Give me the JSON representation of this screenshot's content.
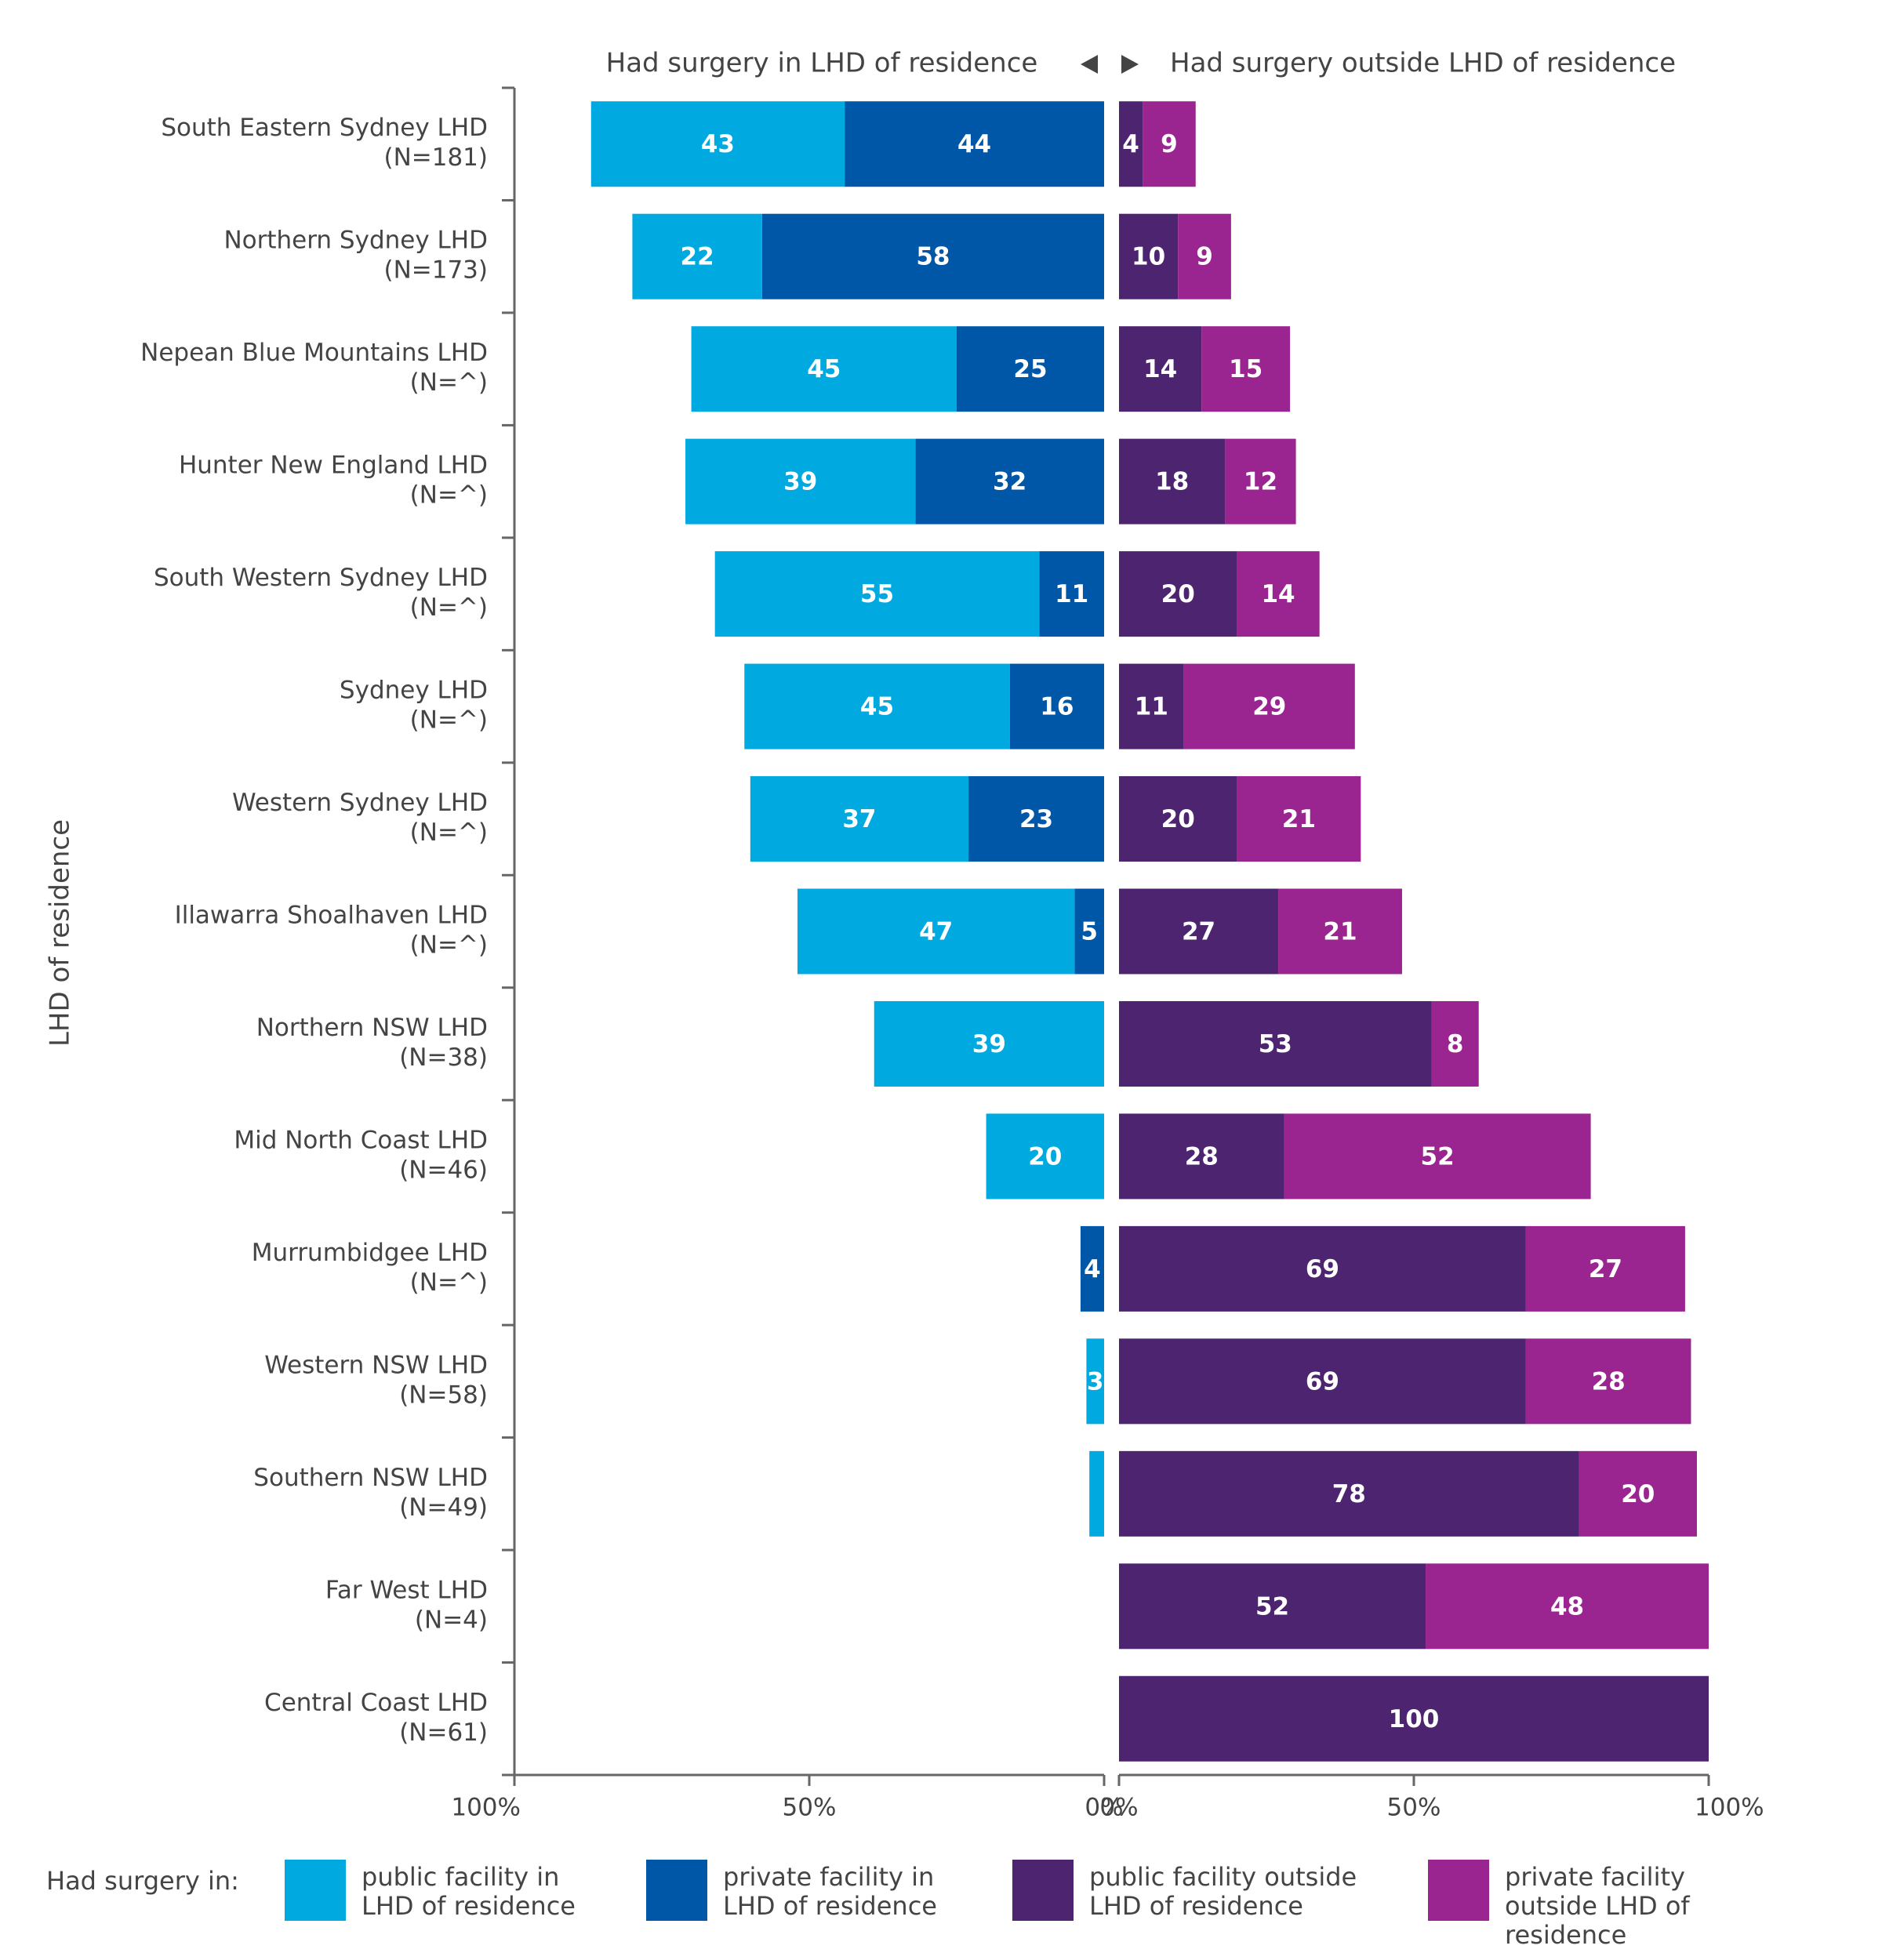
{
  "chart_data": {
    "type": "diverging-bar",
    "header_left": "Had surgery in LHD of residence",
    "header_right": "Had surgery outside LHD of residence",
    "y_label": "LHD of residence",
    "legend_title": "Had surgery in:",
    "categories": [
      [
        "South Eastern Sydney LHD",
        "(N=181)"
      ],
      [
        "Northern Sydney LHD",
        "(N=173)"
      ],
      [
        "Nepean Blue Mountains LHD",
        "(N=^)"
      ],
      [
        "Hunter New England LHD",
        "(N=^)"
      ],
      [
        "South Western Sydney LHD",
        "(N=^)"
      ],
      [
        "Sydney LHD",
        "(N=^)"
      ],
      [
        "Western Sydney LHD",
        "(N=^)"
      ],
      [
        "Illawarra Shoalhaven LHD",
        "(N=^)"
      ],
      [
        "Northern NSW LHD",
        "(N=38)"
      ],
      [
        "Mid North Coast LHD",
        "(N=46)"
      ],
      [
        "Murrumbidgee LHD",
        "(N=^)"
      ],
      [
        "Western NSW LHD",
        "(N=58)"
      ],
      [
        "Southern NSW LHD",
        "(N=49)"
      ],
      [
        "Far West LHD",
        "(N=4)"
      ],
      [
        "Central Coast LHD",
        "(N=61)"
      ]
    ],
    "series": [
      {
        "name": "public facility in LHD of residence",
        "color": "#00a9e0",
        "side": "left",
        "values": [
          43,
          22,
          45,
          39,
          55,
          45,
          37,
          47,
          39,
          20,
          null,
          3,
          2.5,
          null,
          null
        ]
      },
      {
        "name": "private facility in LHD of residence",
        "color": "#0057a8",
        "side": "left",
        "values": [
          44,
          58,
          25,
          32,
          11,
          16,
          23,
          5,
          null,
          null,
          4,
          null,
          null,
          null,
          null
        ]
      },
      {
        "name": "public facility outside LHD of residence",
        "color": "#4d2470",
        "side": "right",
        "values": [
          4,
          10,
          14,
          18,
          20,
          11,
          20,
          27,
          53,
          28,
          69,
          69,
          78,
          52,
          100
        ]
      },
      {
        "name": "private facility outside LHD of residence",
        "color": "#9b2590",
        "side": "right",
        "values": [
          9,
          9,
          15,
          12,
          14,
          29,
          21,
          21,
          8,
          52,
          27,
          28,
          20,
          48,
          null
        ]
      }
    ],
    "xlim": [
      0,
      100
    ],
    "xticks": [
      {
        "value": 0,
        "label": "0%"
      },
      {
        "value": 50,
        "label": "50%"
      },
      {
        "value": 100,
        "label": "100%"
      }
    ]
  }
}
